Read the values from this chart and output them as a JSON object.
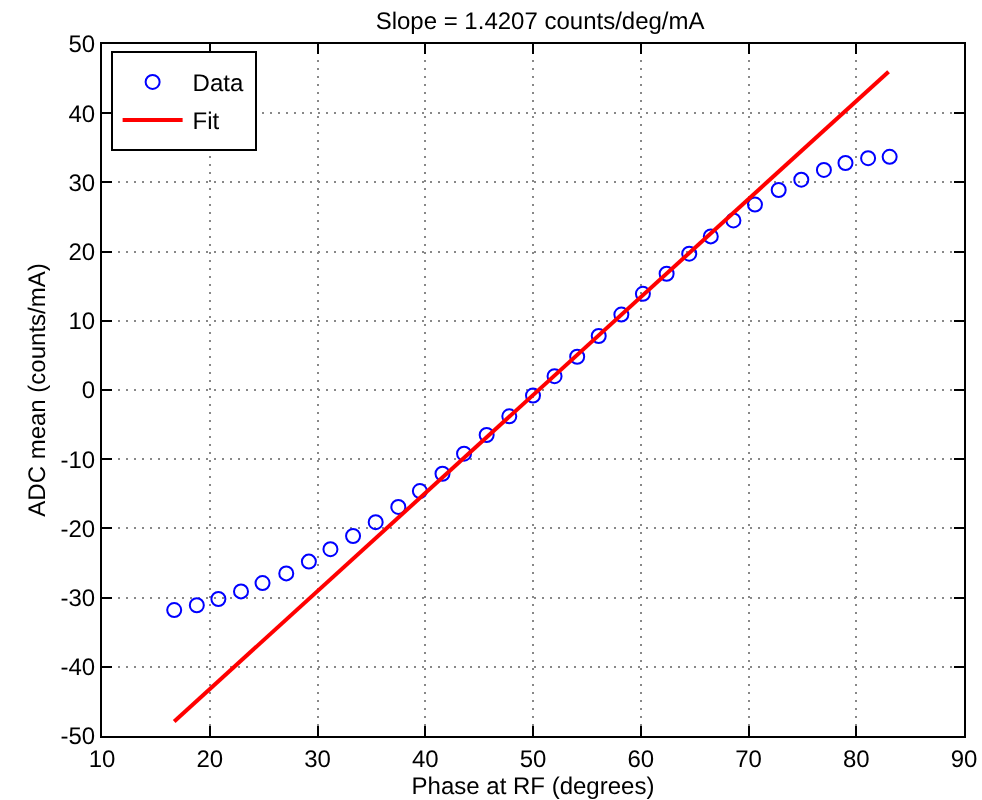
{
  "chart_data": {
    "type": "scatter",
    "title": "Slope = 1.4207 counts/deg/mA",
    "xlabel": "Phase at RF (degrees)",
    "ylabel": "ADC mean (counts/mA)",
    "series": [
      {
        "name": "Data",
        "color": "#0000ff",
        "marker": "circle",
        "x": [
          16.7,
          18.8,
          20.8,
          22.9,
          24.9,
          27.1,
          29.2,
          31.2,
          33.3,
          35.4,
          37.5,
          39.5,
          41.6,
          43.6,
          45.7,
          47.8,
          50.0,
          52.0,
          54.1,
          56.1,
          58.2,
          60.2,
          62.4,
          64.5,
          66.5,
          68.6,
          70.6,
          72.8,
          74.9,
          77.0,
          79.0,
          81.1,
          83.1
        ],
        "values": [
          -31.8,
          -31.1,
          -30.2,
          -29.1,
          -27.9,
          -26.5,
          -24.8,
          -23.0,
          -21.1,
          -19.1,
          -16.9,
          -14.6,
          -12.1,
          -9.2,
          -6.5,
          -3.8,
          -0.8,
          2.0,
          4.8,
          7.8,
          10.9,
          13.9,
          16.8,
          19.7,
          22.2,
          24.5,
          26.8,
          28.9,
          30.4,
          31.8,
          32.8,
          33.5,
          33.7
        ]
      },
      {
        "name": "Fit",
        "type": "line",
        "color": "#ff0000",
        "marker": "none",
        "x": [
          16.7,
          83.0
        ],
        "values": [
          -47.9,
          46.0
        ]
      }
    ],
    "xlim": [
      10,
      90
    ],
    "xticks": [
      10,
      20,
      30,
      40,
      50,
      60,
      70,
      80,
      90
    ],
    "ylim": [
      -50,
      50
    ],
    "yticks": [
      -50,
      -40,
      -30,
      -20,
      -10,
      0,
      10,
      20,
      30,
      40,
      50
    ],
    "grid": true,
    "legend": "top left"
  }
}
